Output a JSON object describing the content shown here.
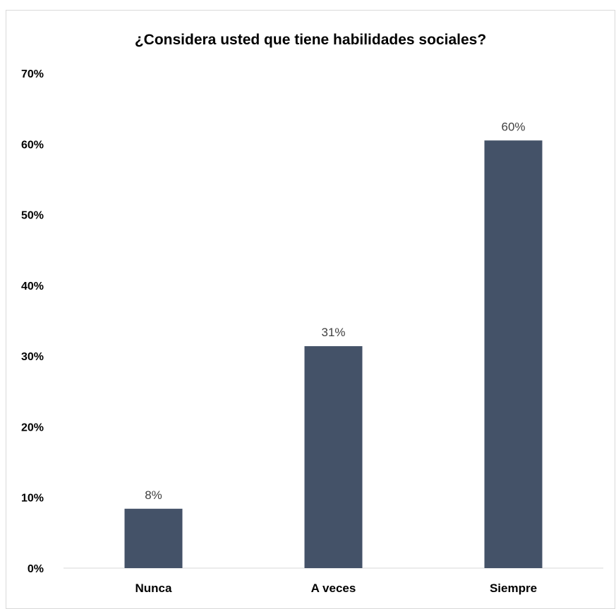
{
  "chart_data": {
    "type": "bar",
    "title": "¿Considera usted que tiene habilidades sociales?",
    "xlabel": "",
    "ylabel": "",
    "categories": [
      "Nunca",
      "A veces",
      "Siempre"
    ],
    "values": [
      8.4,
      31.4,
      60.5
    ],
    "data_labels": [
      "8%",
      "31%",
      "60%"
    ],
    "ylim": [
      0,
      70
    ],
    "yticks": [
      0,
      10,
      20,
      30,
      40,
      50,
      60,
      70
    ],
    "ytick_labels": [
      "0%",
      "10%",
      "20%",
      "30%",
      "40%",
      "50%",
      "60%",
      "70%"
    ],
    "grid": false,
    "legend": "none",
    "bar_color": "#445268",
    "axis_color": "#d9d9d9"
  }
}
